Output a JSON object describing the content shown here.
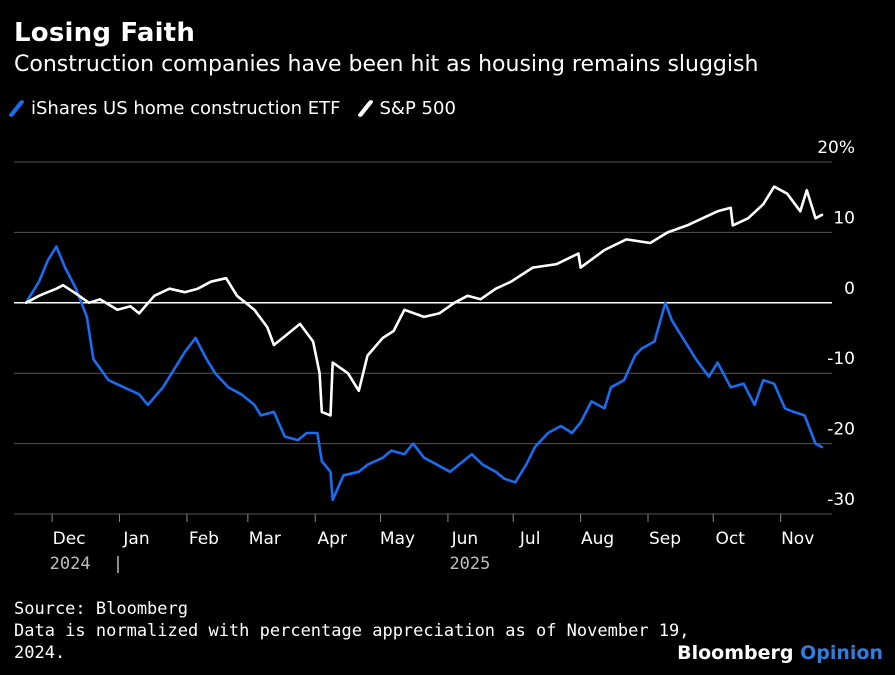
{
  "title": "Losing Faith",
  "subtitle": "Construction companies have been hit as housing remains sluggish",
  "legend": [
    {
      "label": "iShares US home construction ETF",
      "color": "#1a6cf0"
    },
    {
      "label": "S&P 500",
      "color": "#ffffff"
    }
  ],
  "footer": {
    "source": "Source: Bloomberg",
    "note_line1": "Data is normalized with percentage appreciation as of November 19,",
    "note_line2": "2024."
  },
  "brand": {
    "name": "Bloomberg",
    "suffix": "Opinion"
  },
  "chart_data": {
    "type": "line",
    "title": "Losing Faith",
    "subtitle": "Construction companies have been hit as housing remains sluggish",
    "x_tick_labels": [
      "Dec",
      "Jan",
      "Feb",
      "Mar",
      "Apr",
      "May",
      "Jun",
      "Jul",
      "Aug",
      "Sep",
      "Oct",
      "Nov"
    ],
    "x_tick_dates": [
      "2024-12-01",
      "2025-01-01",
      "2025-02-01",
      "2025-03-01",
      "2025-04-01",
      "2025-05-01",
      "2025-06-01",
      "2025-07-01",
      "2025-08-01",
      "2025-09-01",
      "2025-10-01",
      "2025-11-01"
    ],
    "year_labels": [
      {
        "label": "2024",
        "date": "2024-12-01"
      },
      {
        "label": "2025",
        "date": "2025-06-01"
      }
    ],
    "x_range": [
      "2024-11-19",
      "2025-12-05"
    ],
    "y_tick_labels": [
      "20%",
      "10",
      "0",
      "-10",
      "-20",
      "-30"
    ],
    "y_ticks": [
      20,
      10,
      0,
      -10,
      -20,
      -30
    ],
    "ylim": [
      -30,
      20
    ],
    "grid": true,
    "legend_position": "top-left",
    "series": [
      {
        "name": "iShares US home construction ETF",
        "color": "#1a6cf0",
        "x": [
          "2024-11-19",
          "2024-11-25",
          "2024-11-29",
          "2024-12-03",
          "2024-12-07",
          "2024-12-12",
          "2024-12-17",
          "2024-12-20",
          "2024-12-27",
          "2025-01-03",
          "2025-01-10",
          "2025-01-14",
          "2025-01-21",
          "2025-01-27",
          "2025-01-31",
          "2025-02-05",
          "2025-02-10",
          "2025-02-14",
          "2025-02-20",
          "2025-02-26",
          "2025-03-04",
          "2025-03-07",
          "2025-03-13",
          "2025-03-18",
          "2025-03-24",
          "2025-03-28",
          "2025-04-02",
          "2025-04-04",
          "2025-04-08",
          "2025-04-09",
          "2025-04-14",
          "2025-04-21",
          "2025-04-25",
          "2025-05-02",
          "2025-05-06",
          "2025-05-12",
          "2025-05-16",
          "2025-05-21",
          "2025-05-27",
          "2025-06-02",
          "2025-06-06",
          "2025-06-12",
          "2025-06-17",
          "2025-06-23",
          "2025-06-27",
          "2025-07-02",
          "2025-07-07",
          "2025-07-11",
          "2025-07-17",
          "2025-07-23",
          "2025-07-28",
          "2025-08-01",
          "2025-08-06",
          "2025-08-12",
          "2025-08-15",
          "2025-08-21",
          "2025-08-26",
          "2025-08-29",
          "2025-09-04",
          "2025-09-09",
          "2025-09-12",
          "2025-09-17",
          "2025-09-23",
          "2025-09-29",
          "2025-10-03",
          "2025-10-09",
          "2025-10-15",
          "2025-10-20",
          "2025-10-24",
          "2025-10-29",
          "2025-11-03",
          "2025-11-07",
          "2025-11-12",
          "2025-11-17",
          "2025-11-20"
        ],
        "values": [
          0,
          3,
          6,
          8,
          5,
          2,
          -2,
          -8,
          -11,
          -12,
          -13,
          -14.5,
          -12,
          -9,
          -7,
          -5,
          -8,
          -10,
          -12,
          -13,
          -14.5,
          -16,
          -15.5,
          -19,
          -19.5,
          -18.5,
          -18.5,
          -22.5,
          -24,
          -28,
          -24.5,
          -24,
          -23,
          -22,
          -21,
          -21.5,
          -20,
          -22,
          -23,
          -24,
          -23,
          -21.5,
          -23,
          -24,
          -25,
          -25.5,
          -23,
          -20.5,
          -18.5,
          -17.5,
          -18.5,
          -17,
          -14,
          -15,
          -12,
          -11,
          -7.5,
          -6.5,
          -5.5,
          0,
          -2.5,
          -5,
          -8,
          -10.5,
          -8.5,
          -12,
          -11.5,
          -14.5,
          -11,
          -11.5,
          -15,
          -15.5,
          -16,
          -20,
          -20.5
        ]
      },
      {
        "name": "S&P 500",
        "color": "#ffffff",
        "x": [
          "2024-11-19",
          "2024-11-25",
          "2024-11-29",
          "2024-12-03",
          "2024-12-06",
          "2024-12-11",
          "2024-12-18",
          "2024-12-23",
          "2024-12-31",
          "2025-01-06",
          "2025-01-10",
          "2025-01-17",
          "2025-01-24",
          "2025-01-31",
          "2025-02-06",
          "2025-02-12",
          "2025-02-19",
          "2025-02-24",
          "2025-03-04",
          "2025-03-10",
          "2025-03-13",
          "2025-03-19",
          "2025-03-25",
          "2025-03-31",
          "2025-04-03",
          "2025-04-04",
          "2025-04-08",
          "2025-04-09",
          "2025-04-16",
          "2025-04-21",
          "2025-04-25",
          "2025-05-02",
          "2025-05-07",
          "2025-05-12",
          "2025-05-21",
          "2025-05-28",
          "2025-06-04",
          "2025-06-10",
          "2025-06-16",
          "2025-06-23",
          "2025-06-30",
          "2025-07-10",
          "2025-07-21",
          "2025-07-31",
          "2025-08-01",
          "2025-08-12",
          "2025-08-22",
          "2025-09-02",
          "2025-09-10",
          "2025-09-19",
          "2025-09-26",
          "2025-10-03",
          "2025-10-09",
          "2025-10-10",
          "2025-10-17",
          "2025-10-24",
          "2025-10-29",
          "2025-11-04",
          "2025-11-10",
          "2025-11-13",
          "2025-11-17",
          "2025-11-20"
        ],
        "values": [
          0,
          1,
          1.5,
          2,
          2.5,
          1.5,
          0,
          0.5,
          -1,
          -0.5,
          -1.5,
          1,
          2,
          1.5,
          2,
          3,
          3.5,
          1,
          -1,
          -3.5,
          -6,
          -4.5,
          -3,
          -5.5,
          -10,
          -15.5,
          -16,
          -8.5,
          -10,
          -12.5,
          -7.5,
          -5,
          -4,
          -1,
          -2,
          -1.5,
          0,
          1,
          0.5,
          2,
          3,
          5,
          5.5,
          7,
          5,
          7.5,
          9,
          8.5,
          10,
          11,
          12,
          13,
          13.5,
          11,
          12,
          14,
          16.5,
          15.5,
          13,
          16,
          12,
          12.5
        ]
      }
    ]
  }
}
